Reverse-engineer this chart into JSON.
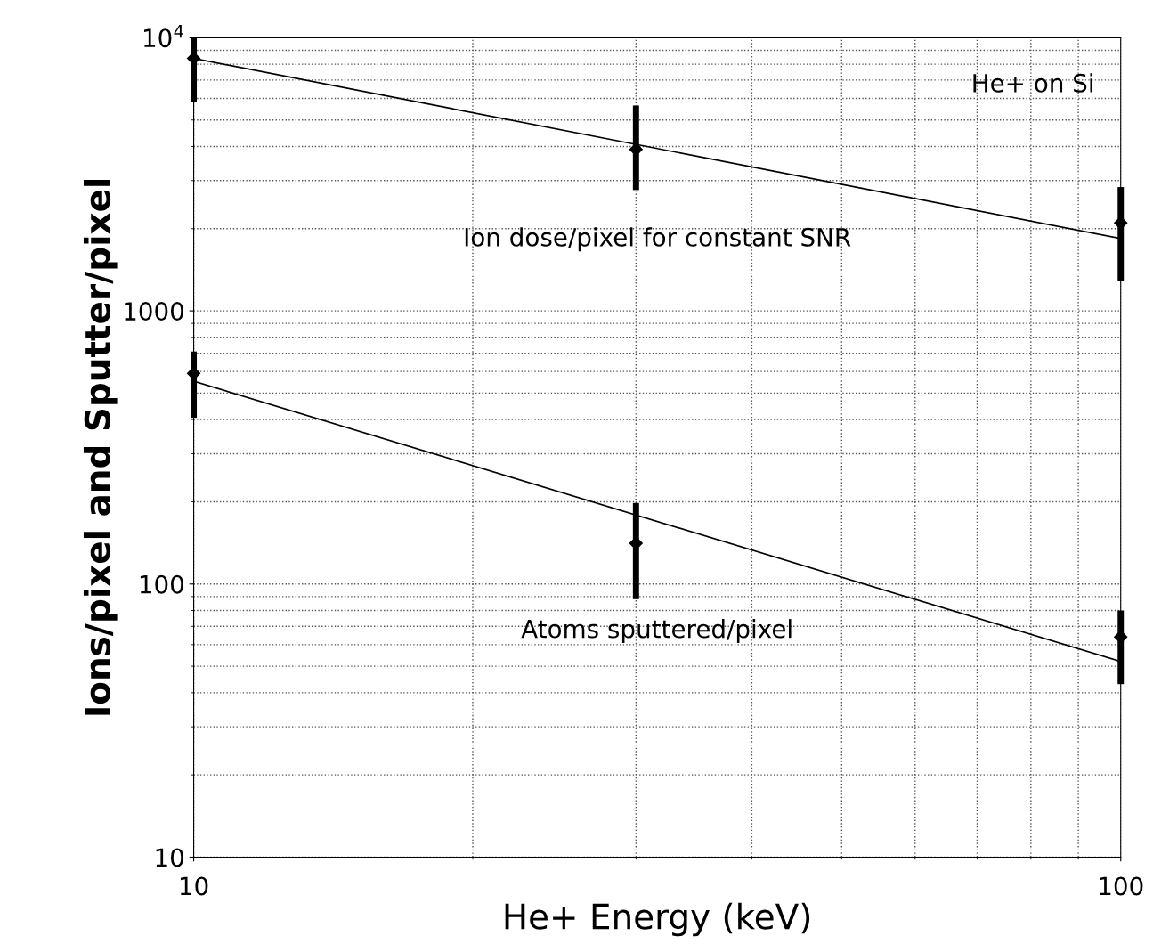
{
  "chart_data": {
    "type": "scatter",
    "xlabel": "He+ Energy (keV)",
    "ylabel": "Ions/pixel and Sputter/pixel",
    "log": "xy",
    "grid": true,
    "xlim": [
      10,
      100
    ],
    "xticks": [
      10,
      100
    ],
    "ylim": [
      10,
      10000
    ],
    "yticks": [
      10,
      100,
      1000,
      {
        "value": 10000,
        "label": "10$^{4}$"
      }
    ],
    "series": [
      {
        "marker": "diamond",
        "color": "#000000",
        "x": [
          10,
          30,
          100
        ],
        "values": [
          8400,
          3900,
          2100
        ],
        "errors": [
          [
            5800,
            10000
          ],
          [
            2770,
            5650
          ],
          [
            1290,
            2840
          ]
        ]
      },
      {
        "type": "line",
        "color": "#000000",
        "x": [
          10,
          100
        ],
        "values": [
          8400,
          1840
        ]
      },
      {
        "marker": "diamond",
        "color": "#000000",
        "x": [
          10,
          30,
          100
        ],
        "values": [
          590,
          141,
          64
        ],
        "errors": [
          [
            406,
            710
          ],
          [
            88,
            198
          ],
          [
            43,
            80
          ]
        ]
      },
      {
        "type": "line",
        "color": "#000000",
        "x": [
          10,
          100
        ],
        "values": [
          553,
          52
        ]
      }
    ],
    "annotations": [
      "He+ on Si",
      "Ion dose/pixel for constant SNR",
      "Atoms sputtered/pixel"
    ]
  }
}
